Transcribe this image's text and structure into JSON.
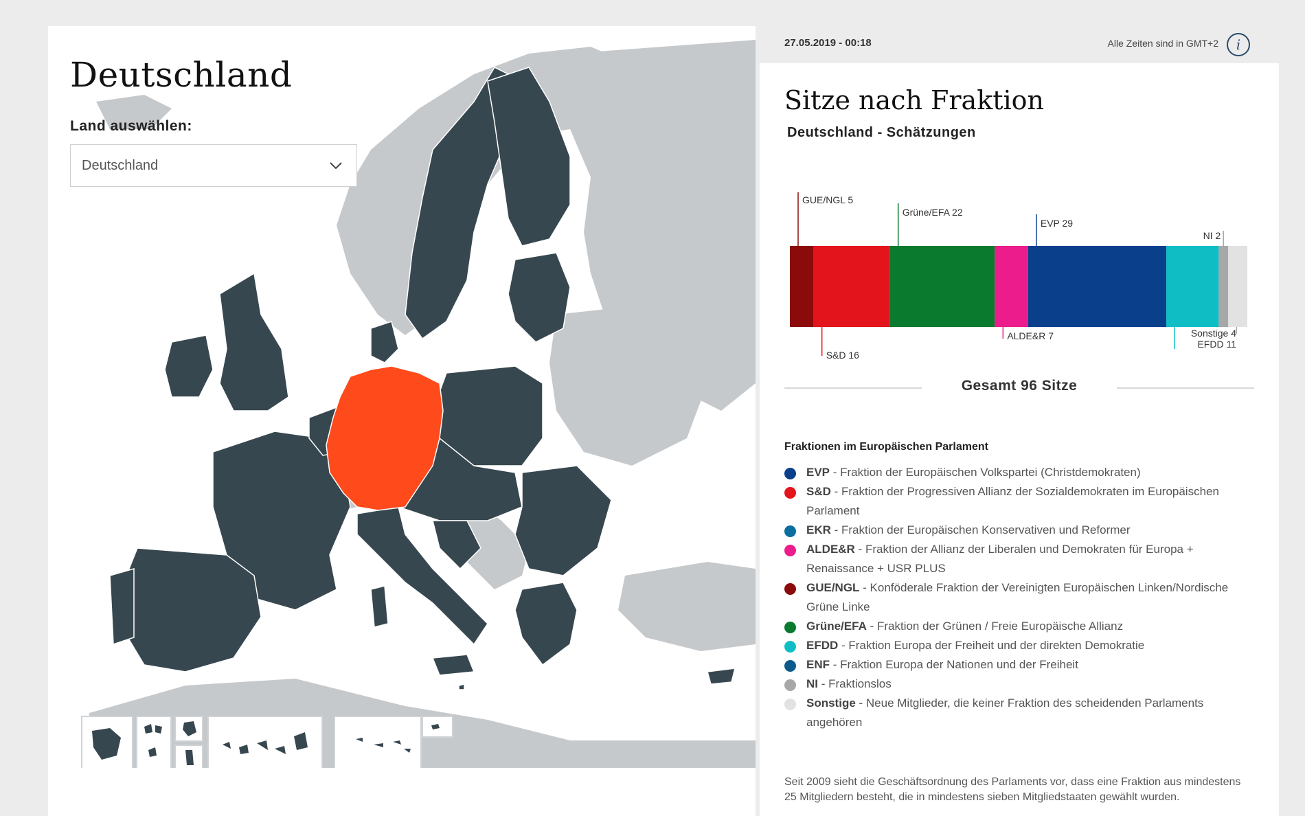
{
  "map_panel": {
    "title": "Deutschland",
    "select_label": "Land auswählen:",
    "select_value": "Deutschland",
    "highlight_color": "#ff4a1c",
    "eu_color": "#37474f",
    "noneu_color": "#c6c9cc"
  },
  "header": {
    "timestamp": "27.05.2019 - 00:18",
    "timezone_note": "Alle Zeiten sind in GMT+2",
    "info_icon": "info-icon"
  },
  "chart_panel": {
    "title": "Sitze nach Fraktion",
    "subtitle": "Deutschland - Schätzungen",
    "total": "Gesamt 96 Sitze"
  },
  "chart_data": {
    "type": "bar",
    "stacked": true,
    "orientation": "horizontal",
    "total": 96,
    "segments": [
      {
        "name": "GUE/NGL",
        "label": "GUE/NGL 5",
        "value": 5,
        "color": "#8b0a0a",
        "label_pos": "top"
      },
      {
        "name": "S&D",
        "label": "S&D 16",
        "value": 16,
        "color": "#e3141b",
        "label_pos": "bottom"
      },
      {
        "name": "Grüne/EFA",
        "label": "Grüne/EFA 22",
        "value": 22,
        "color": "#0a7a2e",
        "label_pos": "top"
      },
      {
        "name": "ALDE&R",
        "label": "ALDE&R 7",
        "value": 7,
        "color": "#ec1c8c",
        "label_pos": "bottom"
      },
      {
        "name": "EVP",
        "label": "EVP 29",
        "value": 29,
        "color": "#0a3f8c",
        "label_pos": "top"
      },
      {
        "name": "EFDD",
        "label": "EFDD 11",
        "value": 11,
        "color": "#0fbec4",
        "label_pos": "bottom"
      },
      {
        "name": "NI",
        "label": "NI 2",
        "value": 2,
        "color": "#a7a7a7",
        "label_pos": "top"
      },
      {
        "name": "Sonstige",
        "label": "Sonstige 4",
        "value": 4,
        "color": "#e2e2e2",
        "label_pos": "bottom"
      }
    ]
  },
  "legend": {
    "title": "Fraktionen im Europäischen Parlament",
    "items": [
      {
        "abbr": "EVP",
        "desc": " - Fraktion der Europäischen Volkspartei (Christdemokraten)",
        "color": "#0a3f8c"
      },
      {
        "abbr": "S&D",
        "desc": " - Fraktion der Progressiven Allianz der Sozialdemokraten im Europäischen Parlament",
        "color": "#e3141b"
      },
      {
        "abbr": "EKR",
        "desc": " - Fraktion der Europäischen Konservativen und Reformer",
        "color": "#0a6e9e"
      },
      {
        "abbr": "ALDE&R",
        "desc": " - Fraktion der Allianz der Liberalen und Demokraten für Europa + Renaissance + USR PLUS",
        "color": "#ec1c8c"
      },
      {
        "abbr": "GUE/NGL",
        "desc": " - Konföderale Fraktion der Vereinigten Europäischen Linken/Nordische Grüne Linke",
        "color": "#8b0a0a"
      },
      {
        "abbr": "Grüne/EFA",
        "desc": " - Fraktion der Grünen / Freie Europäische Allianz",
        "color": "#0a7a2e"
      },
      {
        "abbr": "EFDD",
        "desc": " - Fraktion Europa der Freiheit und der direkten Demokratie",
        "color": "#0fbec4"
      },
      {
        "abbr": "ENF",
        "desc": " - Fraktion Europa der Nationen und der Freiheit",
        "color": "#0a5a8c"
      },
      {
        "abbr": "NI",
        "desc": " - Fraktionslos",
        "color": "#a7a7a7"
      },
      {
        "abbr": "Sonstige",
        "desc": " - Neue Mitglieder, die keiner Fraktion des scheidenden Parlaments angehören",
        "color": "#e2e2e2"
      }
    ]
  },
  "footnote": "Seit 2009 sieht die Geschäftsordnung des Parlaments vor, dass eine Fraktion aus mindestens 25 Mitgliedern besteht, die in mindestens sieben Mitgliedstaaten gewählt wurden."
}
